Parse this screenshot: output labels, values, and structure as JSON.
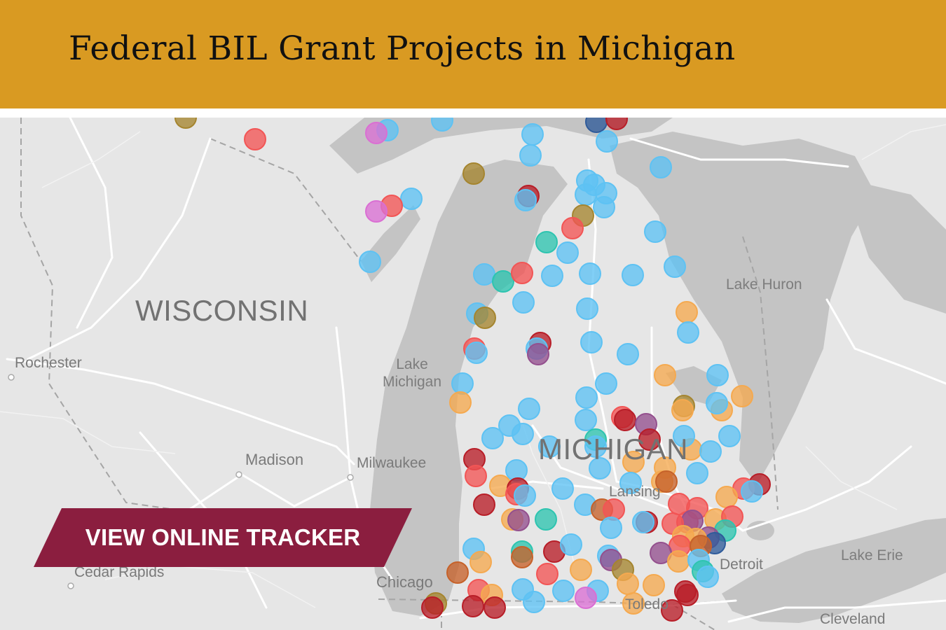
{
  "header": {
    "title": "Federal BIL Grant Projects in Michigan"
  },
  "map": {
    "labels": {
      "wisconsin": "WISCONSIN",
      "michigan": "MICHIGAN",
      "lake_huron": "Lake Huron",
      "lake_michigan": "Lake\nMichigan",
      "lake_erie": "Lake Erie",
      "rochester": "Rochester",
      "madison": "Madison",
      "milwaukee": "Milwaukee",
      "cedar_rapids": "Cedar Rapids",
      "chicago": "Chicago",
      "lansing": "Lansing",
      "detroit": "Detroit",
      "toledo": "Toledo",
      "cleveland": "Cleveland"
    },
    "colors": {
      "land": "#e6e6e6",
      "water": "#c4c4c4",
      "roads": "#ffffff",
      "borders": "#a5a5a5",
      "header": "#d99a22",
      "button": "#8b1e3f"
    },
    "marker_colors": {
      "blue": "#5ec2f3",
      "red": "#f25555",
      "orange": "#f5a94f",
      "darkred": "#b81e28",
      "olive": "#a5852f",
      "teal": "#2ec4b0",
      "purple": "#94508e",
      "magenta": "#da6fd3",
      "brown": "#c6622a",
      "navy": "#2f5b9a",
      "pink": "#f28585"
    }
  },
  "cta": {
    "label": "VIEW ONLINE TRACKER"
  }
}
